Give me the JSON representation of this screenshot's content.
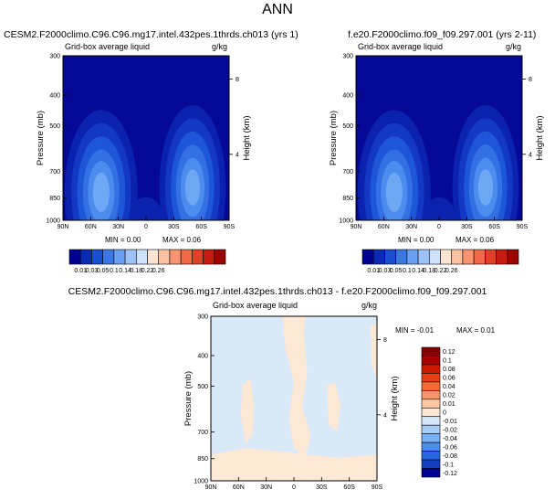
{
  "figure_title": "ANN",
  "chart_data": [
    {
      "type": "heatmap",
      "title": "CESM2.F2000climo.C96.C96.mg17.intel.432pes.1thrds.ch013 (yrs 1)",
      "subtitle_left": "Grid-box average liquid",
      "subtitle_right": "g/kg",
      "ylabel": "Pressure (mb)",
      "ylabel_right": "Height (km)",
      "xticks": [
        "90N",
        "60N",
        "30N",
        "0",
        "30S",
        "60S",
        "90S"
      ],
      "yticks": [
        "300",
        "400",
        "500",
        "700",
        "850",
        "1000"
      ],
      "yticks_right": [
        "8",
        "4"
      ],
      "min_text": "MIN =   0.00",
      "max_text": "MAX =   0.06",
      "colorbar_levels": [
        "0.01",
        "0.03",
        "0.05",
        "0.1",
        "0.14",
        "0.18",
        "0.22",
        "0.26"
      ]
    },
    {
      "type": "heatmap",
      "title": "f.e20.F2000climo.f09_f09.297.001 (yrs 2-11)",
      "subtitle_left": "Grid-box average liquid",
      "subtitle_right": "g/kg",
      "ylabel": "Pressure (mb)",
      "ylabel_right": "Height (km)",
      "xticks": [
        "90N",
        "60N",
        "30N",
        "0",
        "30S",
        "60S",
        "90S"
      ],
      "yticks": [
        "300",
        "400",
        "500",
        "700",
        "850",
        "1000"
      ],
      "yticks_right": [
        "8",
        "4"
      ],
      "min_text": "MIN =   0.00",
      "max_text": "MAX =   0.06",
      "colorbar_levels": [
        "0.01",
        "0.03",
        "0.05",
        "0.1",
        "0.14",
        "0.18",
        "0.22",
        "0.26"
      ]
    },
    {
      "type": "heatmap",
      "title": "CESM2.F2000climo.C96.C96.mg17.intel.432pes.1thrds.ch013 - f.e20.F2000climo.f09_f09.297.001",
      "subtitle_left": "Grid-box average liquid",
      "subtitle_right": "g/kg",
      "ylabel": "Pressure (mb)",
      "ylabel_right": "Height (km)",
      "xticks": [
        "90N",
        "60N",
        "30N",
        "0",
        "30S",
        "60S",
        "90S"
      ],
      "yticks": [
        "300",
        "400",
        "500",
        "700",
        "850",
        "1000"
      ],
      "yticks_right": [
        "8",
        "4"
      ],
      "min_text": "MIN =  -0.01",
      "max_text": "MAX =   0.01",
      "colorbar_levels": [
        "0.12",
        "0.1",
        "0.08",
        "0.06",
        "0.04",
        "0.02",
        "0.01",
        "0",
        "-0.01",
        "-0.02",
        "-0.04",
        "-0.06",
        "-0.08",
        "-0.1",
        "-0.12"
      ]
    }
  ],
  "colors": {
    "abs_bar": [
      "#000090",
      "#0a2ab4",
      "#1850d0",
      "#3a78e8",
      "#6aa0f4",
      "#9cc2fa",
      "#cfe2fc",
      "#fde4d2",
      "#fbc0a0",
      "#f89470",
      "#f06a48",
      "#e04028",
      "#c41c10",
      "#980400"
    ],
    "diff_bar": [
      "#820000",
      "#a40000",
      "#cc1a00",
      "#e84014",
      "#f46a34",
      "#f89868",
      "#fbc8a4",
      "#fde8d6",
      "#d6e8fa",
      "#a8cef8",
      "#7ab0f4",
      "#4c8ef0",
      "#2a66e0",
      "#1440c0",
      "#000090"
    ],
    "field_dark": "#060896",
    "diff_bg": "#d9e9f8",
    "diff_pos": "#fde8d6"
  }
}
